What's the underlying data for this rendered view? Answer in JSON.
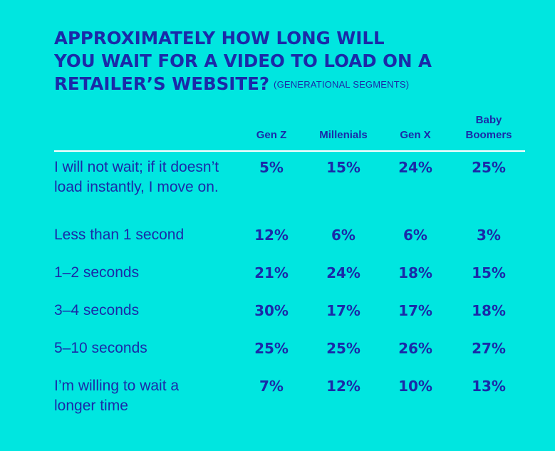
{
  "title_lines": [
    "APPROXIMATELY HOW LONG WILL",
    "YOU WAIT FOR A VIDEO TO LOAD ON A",
    "RETAILER’S WEBSITE?"
  ],
  "subtitle": "(GENERATIONAL SEGMENTS)",
  "chart_data": {
    "type": "table",
    "columns": [
      "Gen Z",
      "Millenials",
      "Gen X",
      "Baby Boomers"
    ],
    "rows": [
      {
        "label": "I will not wait; if it doesn’t load instantly, I move on.",
        "values": [
          "5%",
          "15%",
          "24%",
          "25%"
        ]
      },
      {
        "label": "Less than 1 second",
        "values": [
          "12%",
          "6%",
          "6%",
          "3%"
        ]
      },
      {
        "label": "1–2 seconds",
        "values": [
          "21%",
          "24%",
          "18%",
          "15%"
        ]
      },
      {
        "label": "3–4 seconds",
        "values": [
          "30%",
          "17%",
          "17%",
          "18%"
        ]
      },
      {
        "label": "5–10 seconds",
        "values": [
          "25%",
          "25%",
          "26%",
          "27%"
        ]
      },
      {
        "label": "I’m willing to wait a longer time",
        "values": [
          "7%",
          "12%",
          "10%",
          "13%"
        ]
      }
    ]
  },
  "colors": {
    "background": "#00E6E0",
    "text": "#1A2AA8",
    "divider": "#FFFFFF"
  }
}
